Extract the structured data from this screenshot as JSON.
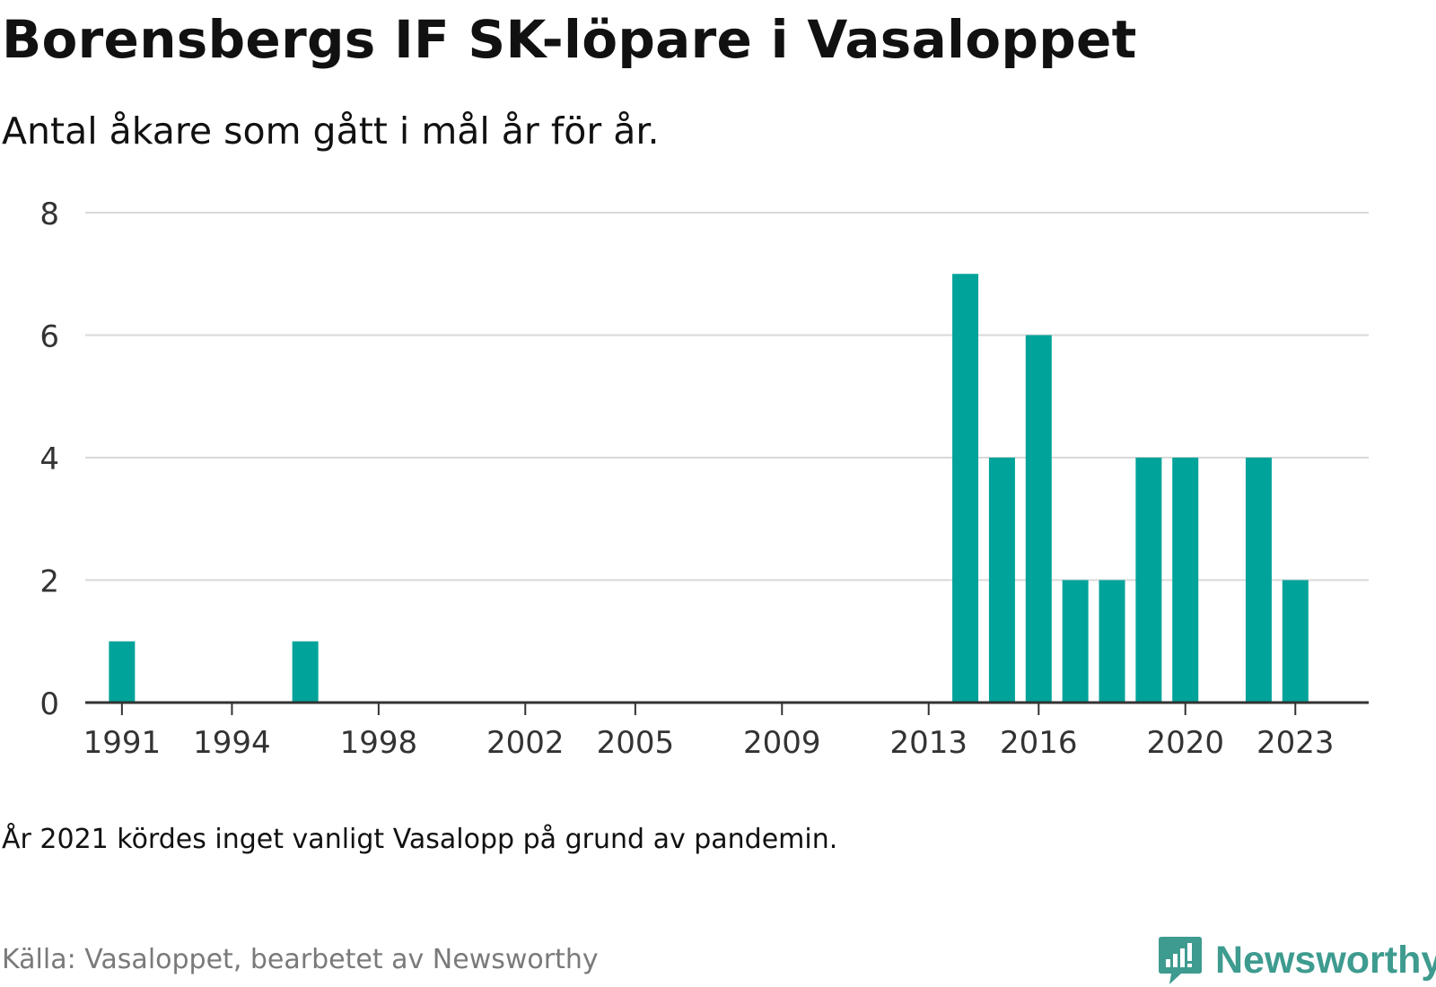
{
  "title": "Borensbergs IF SK-löpare i Vasaloppet",
  "subtitle": "Antal åkare som gått i mål år för år.",
  "note": "År 2021 kördes inget vanligt Vasalopp på grund av pandemin.",
  "source": "Källa: Vasaloppet, bearbetet av Newsworthy",
  "brand": {
    "name": "Newsworthy",
    "icon": "newsworthy-logo-icon",
    "color": "#3e9b8f"
  },
  "chart_data": {
    "type": "bar",
    "title": "Borensbergs IF SK-löpare i Vasaloppet",
    "subtitle": "Antal åkare som gått i mål år för år.",
    "xlabel": "",
    "ylabel": "",
    "bar_color": "#00a39a",
    "grid": true,
    "ylim": [
      0,
      8
    ],
    "yticks": [
      0,
      2,
      4,
      6,
      8
    ],
    "xlim": [
      1990,
      2025
    ],
    "xticks": [
      1991,
      1994,
      1998,
      2002,
      2005,
      2009,
      2013,
      2016,
      2020,
      2023
    ],
    "x": [
      1991,
      1996,
      2014,
      2015,
      2016,
      2017,
      2018,
      2019,
      2020,
      2022,
      2023
    ],
    "values": [
      1,
      1,
      7,
      4,
      6,
      2,
      2,
      4,
      4,
      4,
      2
    ]
  }
}
